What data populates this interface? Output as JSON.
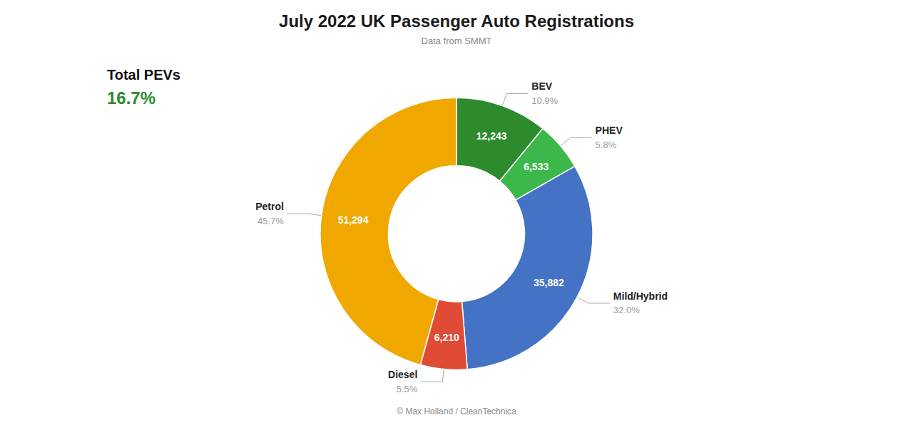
{
  "chart_data": {
    "type": "pie",
    "title": "July 2022 UK Passenger Auto Registrations",
    "subtitle": "Data from SMMT",
    "footer": "© Max Holland / CleanTechnica",
    "categories": [
      "BEV",
      "PHEV",
      "Mild/Hybrid",
      "Diesel",
      "Petrol"
    ],
    "values": [
      12243,
      6533,
      35882,
      6210,
      51294
    ],
    "value_labels": [
      "12,243",
      "6,533",
      "35,882",
      "6,210",
      "51,294"
    ],
    "share_labels": [
      "10.9%",
      "5.8%",
      "32.0%",
      "5.5%",
      "45.7%"
    ],
    "colors": [
      "#2d8a2d",
      "#3cb84a",
      "#4472c4",
      "#e04b35",
      "#f0a800"
    ],
    "data_labels": true,
    "annotations": [
      {
        "text": "Total PEVs"
      },
      {
        "text": "16.7%",
        "color": "#2d8a2d"
      }
    ]
  }
}
